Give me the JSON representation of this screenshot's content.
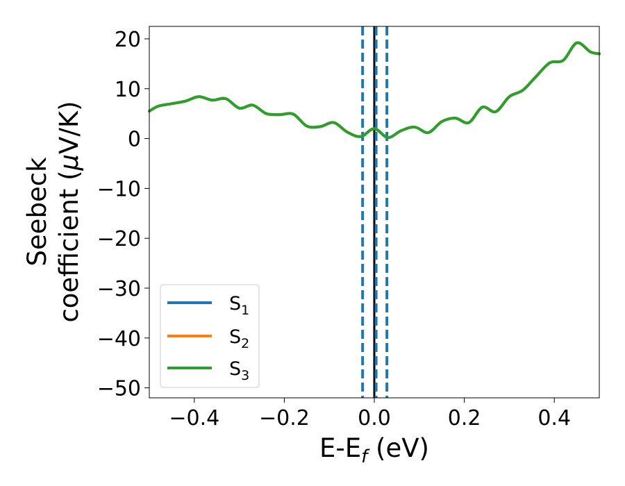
{
  "chart_data": {
    "type": "line",
    "xlabel": {
      "main": "E-E",
      "sub": "f",
      "unit": " (eV)"
    },
    "ylabel": {
      "line1": "Seebeck",
      "line2_prefix": "coefficient  (",
      "mu": "μ",
      "line2_suffix": "V/K)"
    },
    "xlim": [
      -0.5,
      0.5
    ],
    "ylim": [
      -52,
      22.5
    ],
    "xticks": [
      -0.4,
      -0.2,
      0.0,
      0.2,
      0.4
    ],
    "xtick_labels": [
      "−0.4",
      "−0.2",
      "0.0",
      "0.2",
      "0.4"
    ],
    "yticks": [
      20,
      10,
      0,
      -10,
      -20,
      -30,
      -40,
      -50
    ],
    "ytick_labels": [
      "20",
      "10",
      "0",
      "−10",
      "−20",
      "−30",
      "−40",
      "−50"
    ],
    "grid": false,
    "legend_position": "lower-left",
    "x": [
      -0.5,
      -0.48,
      -0.45,
      -0.42,
      -0.39,
      -0.36,
      -0.33,
      -0.3,
      -0.27,
      -0.24,
      -0.21,
      -0.18,
      -0.15,
      -0.12,
      -0.09,
      -0.06,
      -0.03,
      0.0,
      0.03,
      0.06,
      0.09,
      0.12,
      0.15,
      0.18,
      0.21,
      0.24,
      0.27,
      0.3,
      0.33,
      0.36,
      0.39,
      0.42,
      0.45,
      0.48,
      0.5
    ],
    "series": [
      {
        "name_main": "S",
        "name_sub": "1",
        "color": "#1f77b4",
        "values": [
          5.5,
          6.5,
          7.0,
          7.5,
          8.4,
          7.7,
          8.0,
          6.1,
          6.7,
          5.0,
          4.8,
          4.9,
          2.5,
          2.4,
          3.2,
          1.3,
          0.4,
          2.0,
          0.2,
          1.6,
          2.3,
          1.2,
          3.4,
          4.1,
          3.2,
          6.3,
          5.4,
          8.4,
          9.7,
          12.5,
          15.2,
          15.7,
          19.2,
          17.4,
          17.0
        ]
      },
      {
        "name_main": "S",
        "name_sub": "2",
        "color": "#ff7f0e",
        "values": [
          5.5,
          6.5,
          7.0,
          7.5,
          8.4,
          7.7,
          8.0,
          6.1,
          6.7,
          5.0,
          4.8,
          4.9,
          2.5,
          2.4,
          3.2,
          1.3,
          0.4,
          2.0,
          0.2,
          1.6,
          2.3,
          1.2,
          3.4,
          4.1,
          3.2,
          6.3,
          5.4,
          8.4,
          9.7,
          12.5,
          15.2,
          15.7,
          19.2,
          17.4,
          17.0
        ]
      },
      {
        "name_main": "S",
        "name_sub": "3",
        "color": "#2ca02c",
        "values": [
          5.5,
          6.5,
          7.0,
          7.5,
          8.4,
          7.7,
          8.0,
          6.1,
          6.7,
          5.0,
          4.8,
          4.9,
          2.5,
          2.4,
          3.2,
          1.3,
          0.4,
          2.0,
          0.2,
          1.6,
          2.3,
          1.2,
          3.4,
          4.1,
          3.2,
          6.3,
          5.4,
          8.4,
          9.7,
          12.5,
          15.2,
          15.7,
          19.2,
          17.4,
          17.0
        ]
      }
    ],
    "vlines": [
      {
        "x": 0.0,
        "color": "#000000",
        "style": "solid"
      },
      {
        "x": -0.026,
        "color": "#1f77b4",
        "style": "dashed"
      },
      {
        "x": 0.004,
        "color": "#1f77b4",
        "style": "dashed"
      },
      {
        "x": 0.028,
        "color": "#1f77b4",
        "style": "dashed"
      }
    ]
  }
}
